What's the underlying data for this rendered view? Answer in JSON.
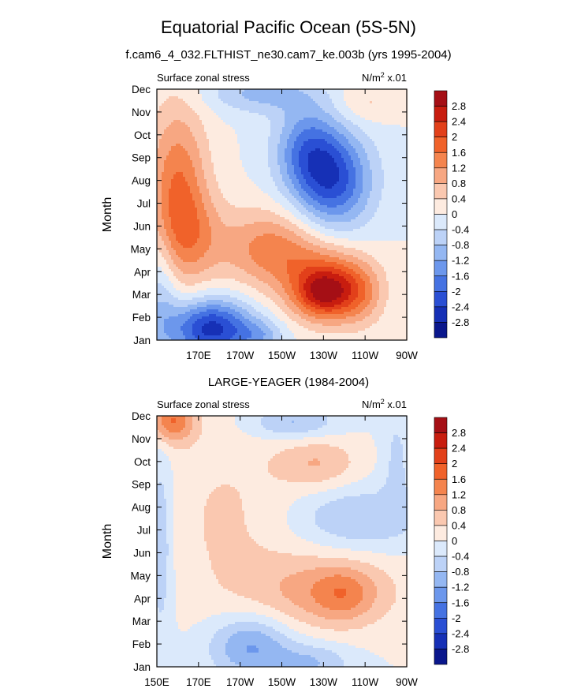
{
  "figure": {
    "title": "Equatorial Pacific Ocean (5S-5N)",
    "subtitle_top": "f.cam6_4_032.FLTHIST_ne30.cam7_ke.003b (yrs 1995-2004)",
    "subtitle_bottom": "LARGE-YEAGER (1984-2004)"
  },
  "colorbar": {
    "levels": [
      "2.8",
      "2.4",
      "2",
      "1.6",
      "1.2",
      "0.8",
      "0.4",
      "0",
      "-0.4",
      "-0.8",
      "-1.2",
      "-1.6",
      "-2",
      "-2.4",
      "-2.8"
    ],
    "colors": [
      "#a50f15",
      "#c81d0f",
      "#e2401a",
      "#f0622a",
      "#f4844e",
      "#f7a782",
      "#fac8b0",
      "#fdebe0",
      "#dbe9fb",
      "#bcd2f7",
      "#94b7f2",
      "#6c97ec",
      "#4572e2",
      "#2a4fd4",
      "#1630b6",
      "#0a178c"
    ]
  },
  "chart_data": [
    {
      "type": "heatmap",
      "panel": "model",
      "left_label": "Surface zonal stress",
      "right_label": "N/m",
      "unit_sup": "2",
      "unit_scale": " x.01",
      "ylabel": "Month",
      "xlabel": "",
      "x_ticks": [
        "170E",
        "170W",
        "150W",
        "130W",
        "110W",
        "90W"
      ],
      "y_ticks": [
        "Jan",
        "Feb",
        "Mar",
        "Apr",
        "May",
        "Jun",
        "Jul",
        "Aug",
        "Sep",
        "Oct",
        "Nov",
        "Dec"
      ],
      "xlim_deg": [
        150,
        270
      ],
      "ylim_month": [
        1,
        12
      ],
      "features": [
        {
          "lon": 160,
          "month": 7.6,
          "sx": 10,
          "sy": 2.6,
          "amp": 1.6
        },
        {
          "lon": 168,
          "month": 5.5,
          "sx": 12,
          "sy": 1.4,
          "amp": 0.8
        },
        {
          "lon": 205,
          "month": 5.0,
          "sx": 16,
          "sy": 1.2,
          "amp": 1.4
        },
        {
          "lon": 232,
          "month": 3.4,
          "sx": 14,
          "sy": 1.1,
          "amp": 2.0
        },
        {
          "lon": 230,
          "month": 3.0,
          "sx": 9,
          "sy": 0.7,
          "amp": 1.2
        },
        {
          "lon": 248,
          "month": 3.0,
          "sx": 8,
          "sy": 1.0,
          "amp": 0.7
        },
        {
          "lon": 176,
          "month": 1.5,
          "sx": 14,
          "sy": 0.9,
          "amp": -2.6
        },
        {
          "lon": 200,
          "month": 1.2,
          "sx": 8,
          "sy": 0.5,
          "amp": -0.8
        },
        {
          "lon": 235,
          "month": 8.0,
          "sx": 13,
          "sy": 1.5,
          "amp": -2.1
        },
        {
          "lon": 222,
          "month": 9.4,
          "sx": 11,
          "sy": 1.4,
          "amp": -1.4
        },
        {
          "lon": 200,
          "month": 11.8,
          "sx": 18,
          "sy": 0.6,
          "amp": -0.9
        },
        {
          "lon": 250,
          "month": 11.4,
          "sx": 10,
          "sy": 0.6,
          "amp": 0.5
        },
        {
          "lon": 152,
          "month": 3.0,
          "sx": 6,
          "sy": 2.0,
          "amp": -0.8
        }
      ]
    },
    {
      "type": "heatmap",
      "panel": "observations",
      "left_label": "Surface zonal stress",
      "right_label": "N/m",
      "unit_sup": "2",
      "unit_scale": " x.01",
      "ylabel": "Month",
      "xlabel": "",
      "x_ticks": [
        "150E",
        "170E",
        "170W",
        "150W",
        "130W",
        "110W",
        "90W"
      ],
      "y_ticks": [
        "Jan",
        "Feb",
        "Mar",
        "Apr",
        "May",
        "Jun",
        "Jul",
        "Aug",
        "Sep",
        "Oct",
        "Nov",
        "Dec"
      ],
      "xlim_deg": [
        150,
        270
      ],
      "ylim_month": [
        1,
        12
      ],
      "features": [
        {
          "lon": 183,
          "month": 7.5,
          "sx": 22,
          "sy": 3.0,
          "amp": 0.45
        },
        {
          "lon": 230,
          "month": 4.3,
          "sx": 25,
          "sy": 1.2,
          "amp": 1.0
        },
        {
          "lon": 240,
          "month": 4.2,
          "sx": 10,
          "sy": 0.8,
          "amp": 0.7
        },
        {
          "lon": 227,
          "month": 9.9,
          "sx": 14,
          "sy": 0.8,
          "amp": 0.8
        },
        {
          "lon": 157,
          "month": 11.8,
          "sx": 8,
          "sy": 0.7,
          "amp": 1.6
        },
        {
          "lon": 195,
          "month": 1.9,
          "sx": 14,
          "sy": 1.0,
          "amp": -1.3
        },
        {
          "lon": 225,
          "month": 1.2,
          "sx": 13,
          "sy": 0.6,
          "amp": -0.8
        },
        {
          "lon": 152,
          "month": 6.5,
          "sx": 4,
          "sy": 3.0,
          "amp": -0.8
        },
        {
          "lon": 245,
          "month": 7.5,
          "sx": 20,
          "sy": 1.0,
          "amp": -0.8
        },
        {
          "lon": 215,
          "month": 11.7,
          "sx": 15,
          "sy": 0.5,
          "amp": -0.9
        },
        {
          "lon": 265,
          "month": 10.0,
          "sx": 5,
          "sy": 1.8,
          "amp": -0.5
        }
      ]
    }
  ]
}
